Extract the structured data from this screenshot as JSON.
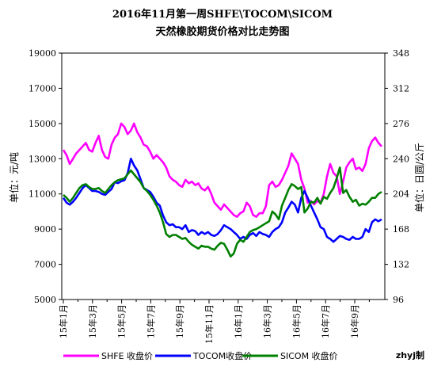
{
  "chart_data": {
    "type": "line",
    "title": "2016年11月第一周SHFE\\TOCOM\\SICOM",
    "subtitle": "天然橡胶期货价格对比走势图",
    "ylabel_left": "单位：元/吨",
    "ylabel_right": "单位：日圆/公斤",
    "ylim_left": [
      5000,
      19000
    ],
    "ylim_right": [
      96,
      348
    ],
    "yticks_left": [
      5000,
      7000,
      9000,
      11000,
      13000,
      15000,
      17000,
      19000
    ],
    "yticks_right": [
      96,
      132,
      168,
      204,
      240,
      276,
      312,
      348
    ],
    "xticks": [
      "15年1月",
      "15年3月",
      "15年5月",
      "15年7月",
      "15年9月",
      "15年11月",
      "16年1月",
      "16年3月",
      "16年5月",
      "16年7月",
      "16年9月"
    ],
    "grid": false,
    "legend_position": "bottom",
    "credit": "zhyj制",
    "series": [
      {
        "name": "SHFE 收盘价",
        "axis": "left",
        "color": "#ff00ff",
        "values": [
          13500,
          13200,
          12700,
          13000,
          13300,
          13500,
          13700,
          13900,
          13500,
          13400,
          13900,
          14300,
          13500,
          13100,
          13000,
          13800,
          14200,
          14400,
          15000,
          14800,
          14400,
          14600,
          15000,
          14500,
          14200,
          13800,
          13700,
          13400,
          13000,
          13200,
          13000,
          12800,
          12500,
          12000,
          11800,
          11700,
          11500,
          11400,
          11800,
          11600,
          11700,
          11500,
          11600,
          11300,
          11200,
          11400,
          11000,
          10500,
          10300,
          10100,
          10400,
          10200,
          10000,
          9800,
          9700,
          9900,
          10000,
          10500,
          10300,
          9800,
          9700,
          9900,
          9900,
          10300,
          11500,
          11700,
          11400,
          11500,
          11800,
          12200,
          12600,
          13300,
          13000,
          12700,
          11800,
          11300,
          10500,
          10600,
          10400,
          10600,
          10500,
          11000,
          12000,
          12700,
          12200,
          12000,
          11000,
          11700,
          12500,
          12800,
          13000,
          12400,
          12500,
          12300,
          12700,
          13600,
          14000,
          14200,
          13900,
          13700
        ]
      },
      {
        "name": "TOCOM收盘价",
        "axis": "right",
        "color": "#0000ff",
        "values": [
          200,
          195,
          193,
          196,
          200,
          205,
          210,
          213,
          210,
          207,
          207,
          206,
          204,
          203,
          206,
          209,
          216,
          215,
          217,
          218,
          225,
          240,
          233,
          228,
          219,
          210,
          208,
          206,
          201,
          195,
          192,
          182,
          175,
          172,
          173,
          170,
          170,
          168,
          172,
          165,
          167,
          166,
          162,
          165,
          163,
          165,
          162,
          161,
          163,
          167,
          172,
          170,
          168,
          165,
          162,
          158,
          160,
          158,
          162,
          164,
          161,
          165,
          163,
          162,
          160,
          165,
          168,
          170,
          175,
          185,
          190,
          196,
          193,
          185,
          200,
          207,
          200,
          192,
          185,
          178,
          170,
          168,
          160,
          158,
          155,
          158,
          161,
          160,
          158,
          157,
          160,
          158,
          158,
          160,
          168,
          165,
          175,
          178,
          176,
          178
        ]
      },
      {
        "name": "SICOM 收盘价",
        "axis": "right",
        "color": "#008000",
        "values": [
          203,
          200,
          196,
          200,
          205,
          210,
          213,
          214,
          211,
          209,
          209,
          210,
          207,
          205,
          209,
          213,
          216,
          218,
          219,
          220,
          224,
          228,
          224,
          220,
          216,
          210,
          207,
          203,
          198,
          192,
          185,
          175,
          163,
          160,
          162,
          162,
          160,
          158,
          159,
          155,
          152,
          150,
          148,
          151,
          150,
          150,
          148,
          147,
          151,
          154,
          153,
          147,
          140,
          143,
          153,
          157,
          155,
          160,
          165,
          167,
          168,
          170,
          172,
          174,
          176,
          186,
          183,
          178,
          192,
          200,
          208,
          214,
          212,
          209,
          211,
          185,
          189,
          196,
          195,
          200,
          194,
          201,
          199,
          205,
          210,
          220,
          231,
          205,
          208,
          201,
          196,
          198,
          192,
          194,
          193,
          196,
          200,
          200,
          204,
          206
        ]
      }
    ]
  }
}
